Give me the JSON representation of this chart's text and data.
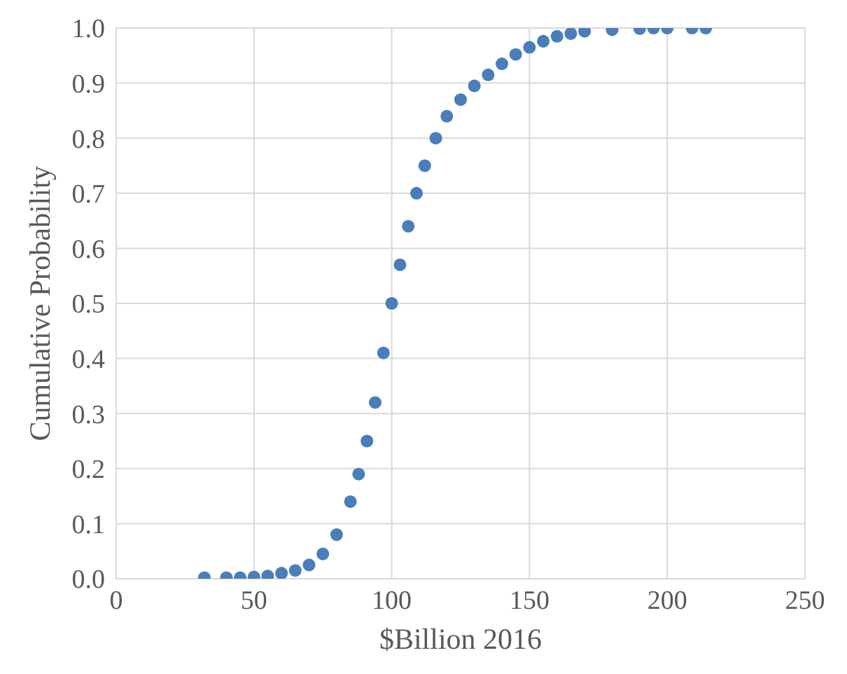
{
  "chart_data": {
    "type": "scatter",
    "xlabel": "$Billion 2016",
    "ylabel": "Cumulative Probability",
    "x": [
      32,
      40,
      45,
      50,
      55,
      60,
      65,
      70,
      75,
      80,
      85,
      88,
      91,
      94,
      97,
      100,
      103,
      106,
      109,
      112,
      116,
      120,
      125,
      130,
      135,
      140,
      145,
      150,
      155,
      160,
      165,
      170,
      180,
      190,
      195,
      200,
      209,
      214
    ],
    "series": [
      {
        "color": "#4a7ebb",
        "values": [
          0.002,
          0.002,
          0.002,
          0.003,
          0.005,
          0.01,
          0.015,
          0.025,
          0.045,
          0.08,
          0.14,
          0.19,
          0.25,
          0.32,
          0.41,
          0.5,
          0.57,
          0.64,
          0.7,
          0.75,
          0.8,
          0.84,
          0.87,
          0.895,
          0.915,
          0.935,
          0.952,
          0.965,
          0.976,
          0.985,
          0.99,
          0.994,
          0.997,
          0.999,
          1.0,
          1.0,
          1.0,
          1.0
        ]
      }
    ],
    "xlim": [
      0,
      250
    ],
    "xticks": [
      0,
      50,
      100,
      150,
      200,
      250
    ],
    "ylim": [
      0,
      1
    ],
    "yticks": [
      {
        "value": 0,
        "label": "0.0"
      },
      {
        "value": 0.1,
        "label": "0.1"
      },
      {
        "value": 0.2,
        "label": "0.2"
      },
      {
        "value": 0.3,
        "label": "0.3"
      },
      {
        "value": 0.4,
        "label": "0.4"
      },
      {
        "value": 0.5,
        "label": "0.5"
      },
      {
        "value": 0.6,
        "label": "0.6"
      },
      {
        "value": 0.7,
        "label": "0.7"
      },
      {
        "value": 0.8,
        "label": "0.8"
      },
      {
        "value": 0.9,
        "label": "0.9"
      },
      {
        "value": 1,
        "label": "1.0"
      }
    ],
    "grid": true,
    "marker": "circle",
    "legend": false
  }
}
